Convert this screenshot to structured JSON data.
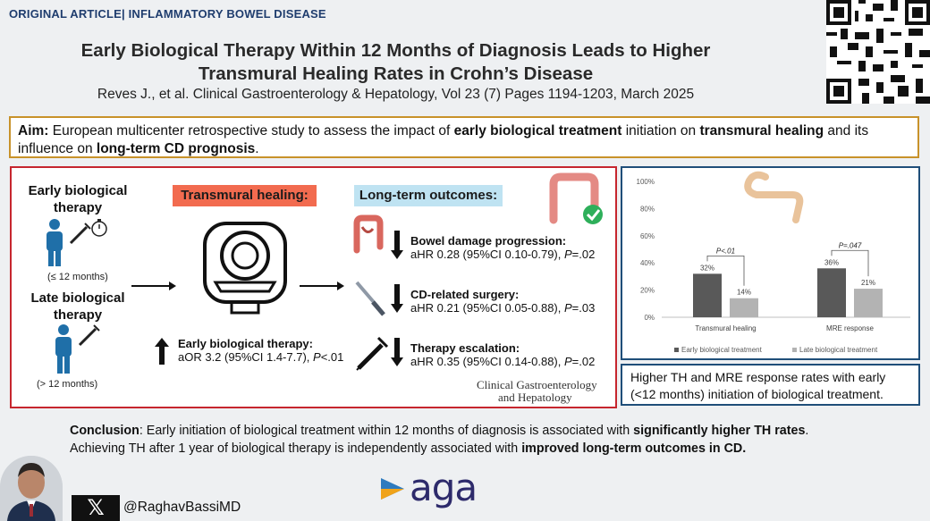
{
  "header": {
    "tag": "ORIGINAL ARTICLE| INFLAMMATORY BOWEL DISEASE",
    "title_line1": "Early Biological Therapy Within 12 Months of Diagnosis Leads to Higher",
    "title_line2": "Transmural Healing Rates in Crohn’s Disease",
    "citation": "Reves J., et al. Clinical Gastroenterology & Hepatology, Vol 23 (7) Pages 1194-1203, March 2025"
  },
  "aim": {
    "label": "Aim:",
    "t1": " European multicenter retrospective study to assess the impact of ",
    "b1": "early biological treatment",
    "t2": " initiation on ",
    "b2": "transmural healing",
    "t3": " and its influence on ",
    "b3": "long-term CD prognosis",
    "t4": "."
  },
  "panel": {
    "early_title": "Early biological therapy",
    "early_note": "(≤ 12 months)",
    "late_title": "Late biological therapy",
    "late_note": "(> 12 months)",
    "th_label": "Transmural healing:",
    "lo_label": "Long-term outcomes:",
    "th_result_title": "Early biological therapy:",
    "th_result_pre": "aOR 3.2 (95%CI 1.4-7.7), ",
    "th_result_p": "P",
    "th_result_post": "<.01",
    "outcomes": [
      {
        "title": "Bowel damage progression:",
        "pre": "aHR 0.28 (95%CI 0.10-0.79), ",
        "p": "P",
        "post": "=.02"
      },
      {
        "title": "CD-related surgery:",
        "pre": "aHR 0.21 (95%CI 0.05-0.88), ",
        "p": "P",
        "post": "=.03"
      },
      {
        "title": "Therapy escalation:",
        "pre": "aHR 0.35 (95%CI 0.14-0.88), ",
        "p": "P",
        "post": "=.02"
      }
    ],
    "journal_line1": "Clinical Gastroenterology",
    "journal_line2": "and Hepatology"
  },
  "chart_data": {
    "type": "bar",
    "categories": [
      "Transmural healing",
      "MRE response"
    ],
    "series": [
      {
        "name": "Early biological treatment",
        "values": [
          32,
          36
        ],
        "color": "#595959"
      },
      {
        "name": "Late biological treatment",
        "values": [
          14,
          21
        ],
        "color": "#b3b3b3"
      }
    ],
    "value_labels": [
      [
        "32%",
        "36%"
      ],
      [
        "14%",
        "21%"
      ]
    ],
    "yticks": [
      "0%",
      "20%",
      "40%",
      "60%",
      "80%",
      "100%"
    ],
    "ylim": [
      0,
      100
    ],
    "pvalues": [
      "P<.01",
      "P=.047"
    ]
  },
  "right_note": "Higher TH and MRE response rates with early (<12 months) initiation of biological treatment.",
  "conclusion": {
    "label": "Conclusion",
    "t1": ": Early initiation of biological treatment within 12 months of diagnosis is associated with ",
    "b1": "significantly higher TH rates",
    "t2": ".",
    "t3": "Achieving TH after 1 year of biological therapy is independently associated with ",
    "b2": "improved long-term outcomes in CD."
  },
  "footer": {
    "x_logo": "𝕏",
    "handle": "@RaghavBassiMD",
    "aga": "aga"
  }
}
